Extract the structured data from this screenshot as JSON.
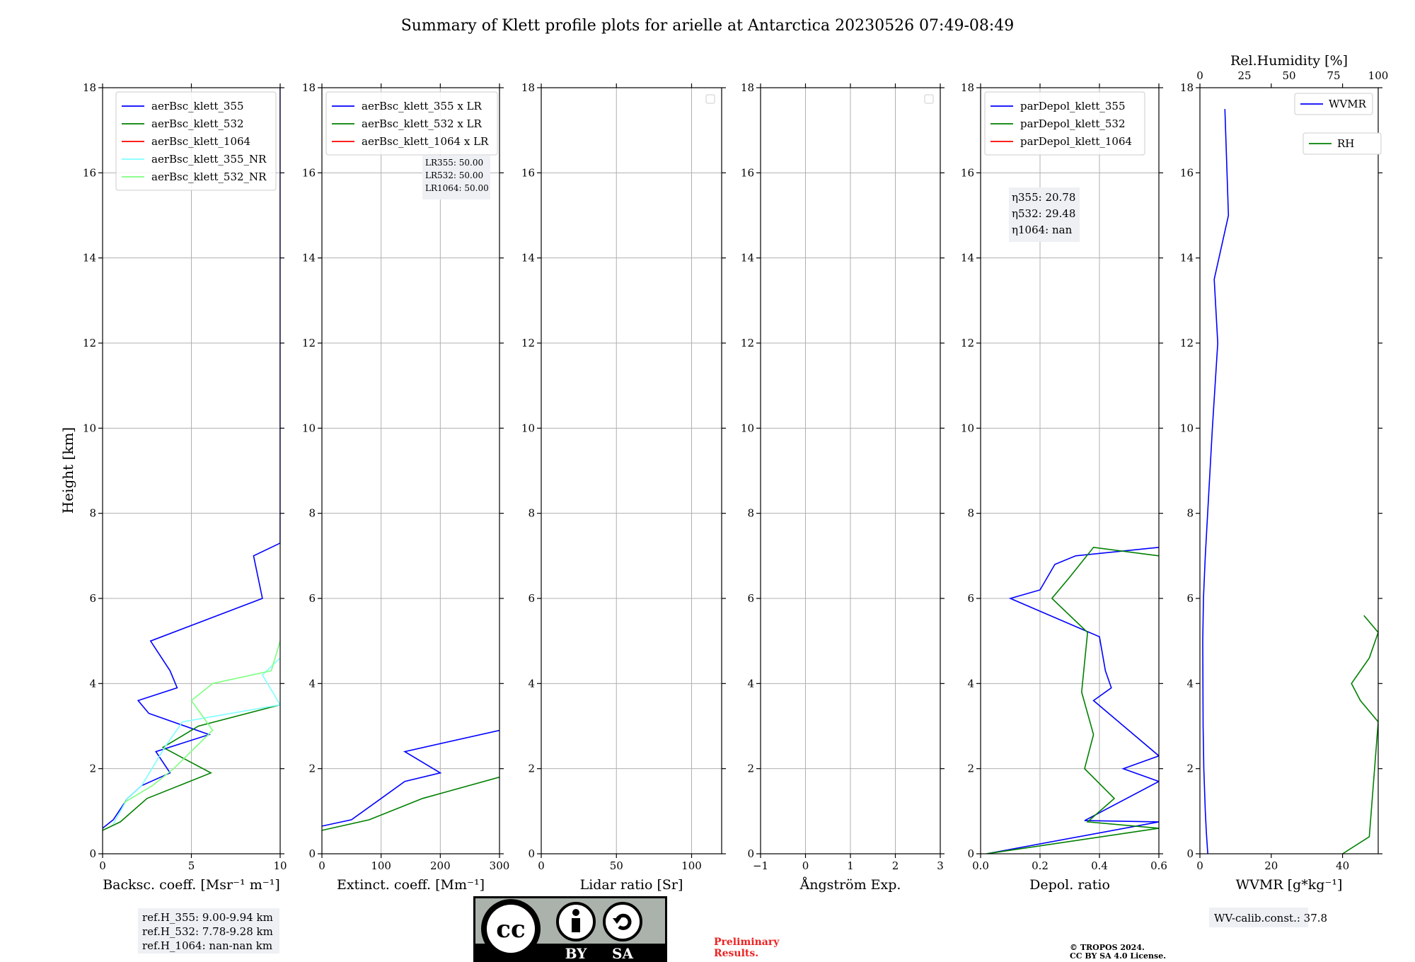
{
  "title": "Summary of Klett profile plots for arielle at Antarctica 20230526 07:49-08:49",
  "colors": {
    "blue": "#0000ff",
    "green": "#008000",
    "red": "#ff0000",
    "cyan": "#7fffff",
    "lightgreen": "#7fff7f",
    "grid": "#b0b0b0"
  },
  "ylabel": "Height [km]",
  "reference_box": [
    "ref.H_355: 9.00-9.94 km",
    "ref.H_532: 7.78-9.28 km",
    "ref.H_1064: nan-nan km"
  ],
  "wv_calib": "WV-calib.const.: 37.8",
  "preliminary": [
    "Preliminary",
    "Results."
  ],
  "copyright": [
    "© TROPOS 2024.",
    "CC BY SA 4.0 License."
  ],
  "license_badge": {
    "icon": "cc",
    "by": "BY",
    "sa": "SA"
  },
  "chart_data": [
    {
      "id": "backscatter",
      "type": "line",
      "xlabel": "Backsc. coeff. [Msr⁻¹ m⁻¹]",
      "xlim": [
        0,
        10
      ],
      "xticks": [
        0,
        5,
        10
      ],
      "ylim": [
        0,
        18
      ],
      "yticks": [
        0,
        2,
        4,
        6,
        8,
        10,
        12,
        14,
        16,
        18
      ],
      "grid": true,
      "legend": "top-right",
      "series": [
        {
          "name": "aerBsc_klett_355",
          "color": "#0000ff",
          "x": [
            0.0,
            0.6,
            1.4,
            2.2,
            3.8,
            3.0,
            6.0,
            2.6,
            2.0,
            4.2,
            3.8,
            2.7,
            9.0,
            8.5,
            10.0,
            10.0
          ],
          "y": [
            0.6,
            0.8,
            1.3,
            1.6,
            1.9,
            2.4,
            2.8,
            3.3,
            3.6,
            3.9,
            4.3,
            5.0,
            6.0,
            7.0,
            7.3,
            18.0
          ]
        },
        {
          "name": "aerBsc_klett_532",
          "color": "#008000",
          "x": [
            0.0,
            1.0,
            2.5,
            6.1,
            3.4,
            5.4,
            10.0
          ],
          "y": [
            0.55,
            0.75,
            1.3,
            1.9,
            2.5,
            3.0,
            3.5
          ]
        },
        {
          "name": "aerBsc_klett_1064",
          "color": "#ff0000",
          "x": [],
          "y": []
        },
        {
          "name": "aerBsc_klett_355_NR",
          "color": "#7fffff",
          "x": [
            0.6,
            1.4,
            2.2,
            3.5,
            4.5,
            10.0,
            9.0,
            10.0
          ],
          "y": [
            0.7,
            1.3,
            1.6,
            2.5,
            3.1,
            3.5,
            4.2,
            4.6
          ]
        },
        {
          "name": "aerBsc_klett_532_NR",
          "color": "#7fff7f",
          "x": [
            1.2,
            2.8,
            4.0,
            6.2,
            5.0,
            6.2,
            9.5,
            10.0
          ],
          "y": [
            1.2,
            1.6,
            2.0,
            2.9,
            3.6,
            4.0,
            4.3,
            5.0
          ]
        }
      ]
    },
    {
      "id": "extinction",
      "type": "line",
      "xlabel": "Extinct. coeff. [Mm⁻¹]",
      "xlim": [
        0,
        300
      ],
      "xticks": [
        0,
        100,
        200,
        300
      ],
      "ylim": [
        0,
        18
      ],
      "yticks": [
        0,
        2,
        4,
        6,
        8,
        10,
        12,
        14,
        16,
        18
      ],
      "grid": true,
      "legend": "top-left",
      "annotation": [
        "LR355: 50.00",
        "LR532: 50.00",
        "LR1064: 50.00"
      ],
      "series": [
        {
          "name": "aerBsc_klett_355 x LR",
          "color": "#0000ff",
          "x": [
            0,
            50,
            100,
            140,
            200,
            140,
            300
          ],
          "y": [
            0.65,
            0.8,
            1.3,
            1.7,
            1.9,
            2.4,
            2.9
          ]
        },
        {
          "name": "aerBsc_klett_532 x LR",
          "color": "#008000",
          "x": [
            0,
            80,
            170,
            300
          ],
          "y": [
            0.55,
            0.8,
            1.3,
            1.8
          ]
        },
        {
          "name": "aerBsc_klett_1064 x LR",
          "color": "#ff0000",
          "x": [],
          "y": []
        }
      ]
    },
    {
      "id": "lidar_ratio",
      "type": "line",
      "xlabel": "Lidar ratio [Sr]",
      "xlim": [
        0,
        120
      ],
      "xticks": [
        0,
        50,
        100
      ],
      "ylim": [
        0,
        18
      ],
      "yticks": [
        0,
        2,
        4,
        6,
        8,
        10,
        12,
        14,
        16,
        18
      ],
      "grid": true,
      "series": []
    },
    {
      "id": "angstrom",
      "type": "line",
      "xlabel": "Ångström Exp.",
      "xlim": [
        -1,
        3
      ],
      "xticks": [
        -1,
        0,
        1,
        2,
        3
      ],
      "ylim": [
        0,
        18
      ],
      "yticks": [
        0,
        2,
        4,
        6,
        8,
        10,
        12,
        14,
        16,
        18
      ],
      "grid": true,
      "series": []
    },
    {
      "id": "depol",
      "type": "line",
      "xlabel": "Depol. ratio",
      "xlim": [
        0,
        0.6
      ],
      "xticks": [
        0.0,
        0.2,
        0.4,
        0.6
      ],
      "xtick_labels": [
        "0.0",
        "0.2",
        "0.4",
        "0.6"
      ],
      "ylim": [
        0,
        18
      ],
      "yticks": [
        0,
        2,
        4,
        6,
        8,
        10,
        12,
        14,
        16,
        18
      ],
      "grid": true,
      "legend": "top-left",
      "annotation": [
        "η355: 20.78",
        "η532: 29.48",
        "η1064: nan"
      ],
      "series": [
        {
          "name": "parDepol_klett_355",
          "color": "#0000ff",
          "x": [
            0.02,
            0.6,
            0.35,
            0.6,
            0.48,
            0.6,
            0.38,
            0.44,
            0.42,
            0.4,
            0.1,
            0.2,
            0.25,
            0.32,
            0.6
          ],
          "y": [
            0.0,
            0.75,
            0.78,
            1.7,
            2.0,
            2.3,
            3.6,
            3.9,
            4.3,
            5.1,
            6.0,
            6.2,
            6.8,
            7.0,
            7.2
          ]
        },
        {
          "name": "parDepol_klett_532",
          "color": "#008000",
          "x": [
            0.02,
            0.6,
            0.36,
            0.45,
            0.35,
            0.38,
            0.34,
            0.35,
            0.36,
            0.24,
            0.3,
            0.38,
            0.6
          ],
          "y": [
            0.0,
            0.6,
            0.75,
            1.3,
            2.0,
            2.8,
            3.8,
            4.5,
            5.2,
            6.0,
            6.5,
            7.2,
            7.0
          ]
        },
        {
          "name": "parDepol_klett_1064",
          "color": "#ff0000",
          "x": [],
          "y": []
        }
      ]
    },
    {
      "id": "wvmr",
      "type": "line",
      "xlabel": "WVMR [g*kg⁻¹]",
      "xlim": [
        0,
        50
      ],
      "xticks": [
        0,
        20,
        40
      ],
      "x2label": "Rel.Humidity [%]",
      "x2lim": [
        0,
        100
      ],
      "x2ticks": [
        0,
        25,
        50,
        75,
        100
      ],
      "ylim": [
        0,
        18
      ],
      "yticks": [
        0,
        2,
        4,
        6,
        8,
        10,
        12,
        14,
        16,
        18
      ],
      "grid": false,
      "legend": "top-right",
      "series": [
        {
          "name": "WVMR",
          "color": "#0000ff",
          "x": [
            2.2,
            1.8,
            1.5,
            1.1,
            0.9,
            0.8,
            1.0,
            1.5,
            2.5,
            3.5,
            5.0,
            4.0,
            8.0,
            7.0
          ],
          "y": [
            0.0,
            0.5,
            1.0,
            2.0,
            3.0,
            5.0,
            6.0,
            7.0,
            8.5,
            10.0,
            12.0,
            13.5,
            15.0,
            17.5
          ]
        },
        {
          "name": "RH",
          "color": "#008000",
          "x": [
            80,
            95,
            100,
            90,
            85,
            95,
            100,
            92
          ],
          "y": [
            0.0,
            0.4,
            3.1,
            3.6,
            4.0,
            4.6,
            5.2,
            5.6
          ]
        }
      ]
    }
  ]
}
